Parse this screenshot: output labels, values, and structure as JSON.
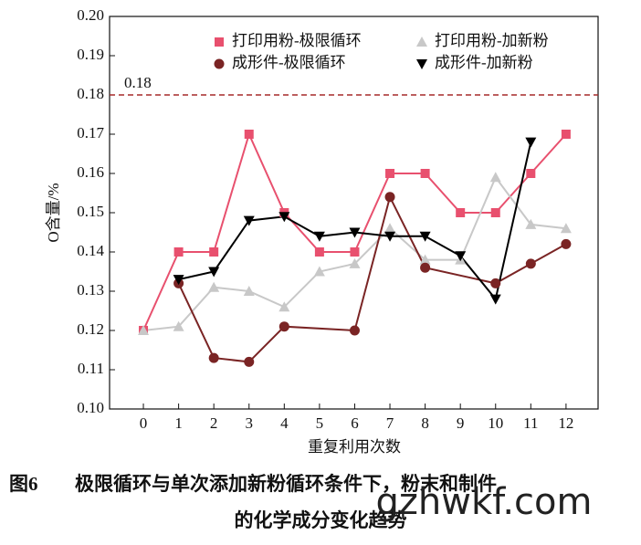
{
  "chart_data": {
    "type": "line",
    "ylabel": "O含量/%",
    "xlabel": "重复利用次数",
    "xlim": [
      -0.96,
      12.91
    ],
    "xticks": [
      0,
      1,
      2,
      3,
      4,
      5,
      6,
      7,
      8,
      9,
      10,
      11,
      12
    ],
    "ylim": [
      0.1,
      0.2
    ],
    "yticks": [
      {
        "value": 0.1,
        "label": "0.10"
      },
      {
        "value": 0.11,
        "label": "0.11"
      },
      {
        "value": 0.12,
        "label": "0.12"
      },
      {
        "value": 0.13,
        "label": "0.13"
      },
      {
        "value": 0.14,
        "label": "0.14"
      },
      {
        "value": 0.15,
        "label": "0.15"
      },
      {
        "value": 0.16,
        "label": "0.16"
      },
      {
        "value": 0.17,
        "label": "0.17"
      },
      {
        "value": 0.18,
        "label": "0.18"
      },
      {
        "value": 0.19,
        "label": "0.19"
      },
      {
        "value": 0.2,
        "label": "0.20"
      }
    ],
    "reference_line": 0.18,
    "reference_color": "#a52a2a",
    "series": [
      {
        "name": "打印用粉-极限循环",
        "color": "#e8506e",
        "marker": "square",
        "x": [
          0,
          1,
          2,
          3,
          4,
          5,
          6,
          7,
          8,
          9,
          10,
          11,
          12
        ],
        "values": [
          0.12,
          0.14,
          0.14,
          0.17,
          0.15,
          0.14,
          0.14,
          0.16,
          0.16,
          0.15,
          0.15,
          0.16,
          0.17
        ]
      },
      {
        "name": "打印用粉-加新粉",
        "color": "#c8c8c8",
        "marker": "triangle",
        "x": [
          0,
          1,
          2,
          3,
          4,
          5,
          6,
          7,
          8,
          9,
          10,
          11,
          12
        ],
        "values": [
          0.12,
          0.121,
          0.131,
          0.13,
          0.126,
          0.135,
          0.137,
          0.146,
          0.138,
          0.138,
          0.159,
          0.147,
          0.146
        ]
      },
      {
        "name": "成形件-极限循环",
        "color": "#7a2424",
        "marker": "circle",
        "x": [
          1,
          2,
          3,
          4,
          6,
          7,
          8,
          10,
          11,
          12
        ],
        "values": [
          0.132,
          0.113,
          0.112,
          0.121,
          0.12,
          0.154,
          0.136,
          0.132,
          0.137,
          0.142
        ]
      },
      {
        "name": "成形件-加新粉",
        "color": "#000000",
        "marker": "triangle-down",
        "x": [
          1,
          2,
          3,
          4,
          5,
          6,
          7,
          8,
          9,
          10,
          11
        ],
        "values": [
          0.133,
          0.135,
          0.148,
          0.149,
          0.144,
          0.145,
          0.144,
          0.144,
          0.139,
          0.128,
          0.168
        ]
      }
    ]
  },
  "caption": {
    "label": "图6",
    "lines": [
      "极限循环与单次添加新粉循环条件下，粉末和制件",
      "的化学成分变化趋势"
    ]
  },
  "watermark": "gzhwkf.com"
}
